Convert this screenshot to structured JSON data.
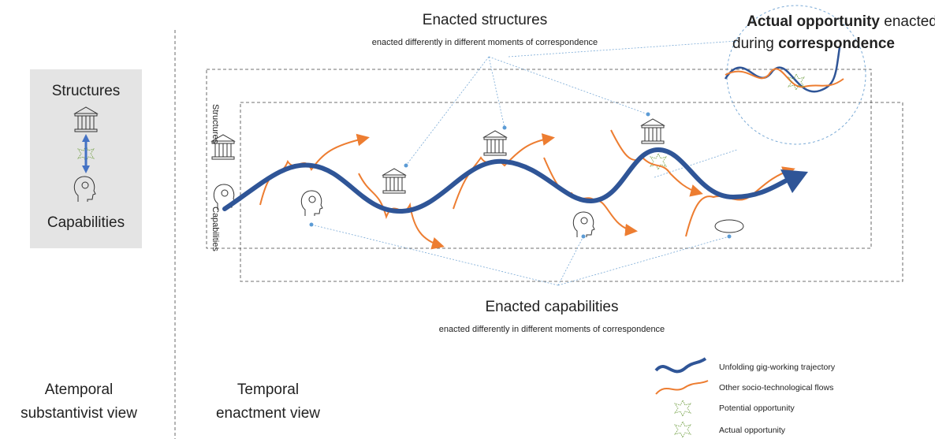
{
  "left_box": {
    "top": "Structures",
    "bottom": "Capabilities"
  },
  "band_labels": {
    "top": "Structures",
    "bottom": "Capabilities"
  },
  "enacted_structures": {
    "title": "Enacted structures",
    "subtitle": "enacted differently in different moments of correspondence"
  },
  "enacted_capabilities": {
    "title": "Enacted capabilities",
    "subtitle": "enacted differently in different moments of correspondence"
  },
  "callout": {
    "lines": [
      [
        "Actual opportunity",
        " enacted"
      ],
      [
        "during ",
        "correspondence"
      ]
    ]
  },
  "views": {
    "atemporal": [
      "Atemporal",
      "substantivist view"
    ],
    "temporal": [
      "Temporal",
      "enactment view"
    ]
  },
  "legend": [
    "Unfolding gig-working trajectory",
    "Other socio-technological flows",
    "Potential opportunity",
    "Actual opportunity"
  ]
}
